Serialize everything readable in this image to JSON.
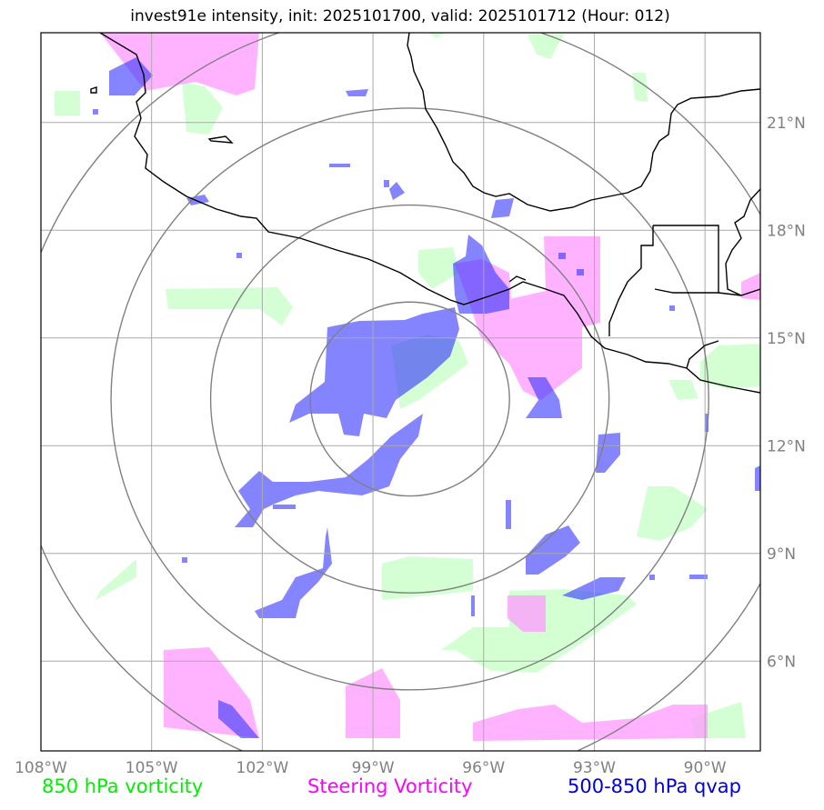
{
  "title": "invest91e intensity, init: 2025101700, valid: 2025101712 (Hour: 012)",
  "map": {
    "lon_range": [
      -108,
      -88.5
    ],
    "lat_range": [
      3.5,
      23.5
    ],
    "center": {
      "lon": -98,
      "lat": 13.3
    },
    "rings_deg": [
      2.7,
      5.4,
      8.1,
      10.8
    ],
    "lon_ticks": [
      {
        "value": -108,
        "label": "108°W"
      },
      {
        "value": -105,
        "label": "105°W"
      },
      {
        "value": -102,
        "label": "102°W"
      },
      {
        "value": -99,
        "label": "99°W"
      },
      {
        "value": -96,
        "label": "96°W"
      },
      {
        "value": -93,
        "label": "93°W"
      },
      {
        "value": -90,
        "label": "90°W"
      }
    ],
    "lat_ticks": [
      {
        "value": 6,
        "label": "6°N"
      },
      {
        "value": 9,
        "label": "9°N"
      },
      {
        "value": 12,
        "label": "12°N"
      },
      {
        "value": 15,
        "label": "15°N"
      },
      {
        "value": 18,
        "label": "18°N"
      },
      {
        "value": 21,
        "label": "21°N"
      }
    ],
    "colors": {
      "vort850": "#ccffcc",
      "steering": "#ff99ff",
      "qvap": "#3333ff",
      "grid": "#aaaaaa",
      "ring": "#808080",
      "coast": "#000000"
    }
  },
  "legend": {
    "vort850": "850 hPa vorticity",
    "steering": "Steering Vorticity",
    "qvap": "500-850 hPa qvap"
  }
}
